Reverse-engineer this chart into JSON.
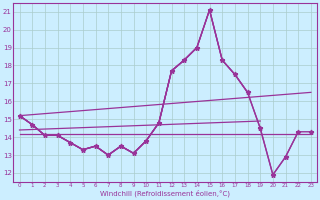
{
  "x": [
    0,
    1,
    2,
    3,
    4,
    5,
    6,
    7,
    8,
    9,
    10,
    11,
    12,
    13,
    14,
    15,
    16,
    17,
    18,
    19,
    20,
    21,
    22,
    23
  ],
  "series": [
    [
      15.2,
      14.7,
      14.1,
      14.1,
      13.7,
      13.3,
      13.5,
      13.0,
      13.5,
      13.1,
      13.8,
      14.8,
      17.7,
      18.3,
      19.0,
      21.1,
      18.3,
      17.5,
      16.5,
      14.5,
      11.9,
      12.9,
      14.3,
      14.3
    ],
    [
      15.2,
      14.7,
      14.1,
      14.1,
      13.7,
      13.3,
      13.5,
      13.0,
      13.5,
      13.1,
      13.8,
      14.8,
      17.7,
      18.3,
      19.0,
      21.1,
      18.3,
      17.5,
      16.5,
      14.5,
      11.9,
      12.9,
      14.3,
      null
    ],
    [
      15.2,
      14.7,
      14.1,
      14.1,
      13.7,
      13.3,
      13.5,
      13.0,
      13.5,
      13.1,
      13.8,
      14.8,
      17.7,
      18.3,
      19.0,
      21.1,
      18.3,
      17.5,
      16.5,
      null,
      null,
      null,
      null,
      null
    ],
    [
      15.2,
      14.7,
      14.1,
      14.1,
      13.7,
      13.3,
      13.5,
      13.0,
      13.5,
      13.1,
      13.8,
      14.8,
      17.7,
      18.3,
      19.0,
      null,
      null,
      null,
      null,
      null,
      null,
      null,
      null,
      null
    ]
  ],
  "trend_lines": [
    {
      "x": [
        0,
        23
      ],
      "y": [
        15.2,
        16.5
      ]
    },
    {
      "x": [
        0,
        19
      ],
      "y": [
        14.4,
        14.9
      ]
    },
    {
      "x": [
        0,
        23
      ],
      "y": [
        14.2,
        14.2
      ]
    }
  ],
  "line_color": "#993399",
  "bg_color": "#cceeff",
  "grid_color": "#aacccc",
  "xlabel": "Windchill (Refroidissement éolien,°C)",
  "xlim": [
    -0.5,
    23.5
  ],
  "ylim": [
    11.5,
    21.5
  ],
  "yticks": [
    12,
    13,
    14,
    15,
    16,
    17,
    18,
    19,
    20,
    21
  ],
  "xticks": [
    0,
    1,
    2,
    3,
    4,
    5,
    6,
    7,
    8,
    9,
    10,
    11,
    12,
    13,
    14,
    15,
    16,
    17,
    18,
    19,
    20,
    21,
    22,
    23
  ]
}
